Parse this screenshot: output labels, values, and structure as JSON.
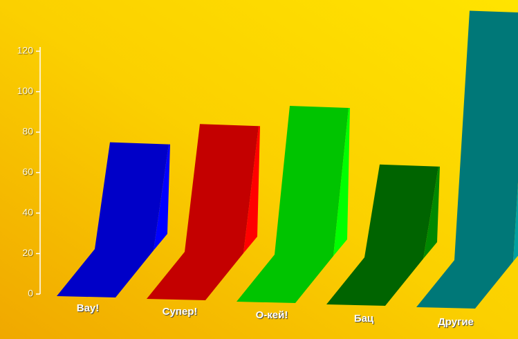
{
  "chart_data": {
    "type": "bar3d",
    "categories": [
      "Вау!",
      "Супер!",
      "О-кей!",
      "Бац",
      "Другие"
    ],
    "values": [
      75,
      84,
      93,
      64,
      140
    ],
    "colors": [
      "#0000c8",
      "#c40000",
      "#00c400",
      "#006400",
      "#007878"
    ],
    "side_colors": [
      "#0000ff",
      "#ff0000",
      "#00ff00",
      "#008800",
      "#00a0a0"
    ],
    "ylim": [
      0,
      120
    ],
    "yticks": [
      0,
      20,
      40,
      60,
      80,
      100,
      120
    ]
  }
}
